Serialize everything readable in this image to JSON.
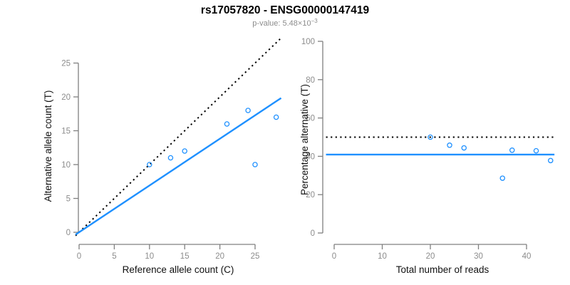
{
  "header": {
    "title": "rs17057820 - ENSG00000147419",
    "pvalue_prefix": "p-value: 5.48×10",
    "pvalue_exponent": "−3"
  },
  "colors": {
    "accent_blue": "#1E90FF",
    "line_black": "#000000",
    "axis_gray": "#808080",
    "tick_label_gray": "#8c8c8c",
    "subtitle_gray": "#8c8c8c",
    "label_black": "#111111"
  },
  "chart_data": [
    {
      "type": "scatter",
      "panel": "allele-counts",
      "xlabel": "Reference allele count (C)",
      "ylabel": "Alternative allele count (T)",
      "xticks": [
        0,
        5,
        10,
        15,
        20,
        25
      ],
      "yticks": [
        0,
        5,
        10,
        15,
        20,
        25
      ],
      "xlim": [
        -0.5,
        28.7
      ],
      "ylim": [
        -0.5,
        28.7
      ],
      "grid": false,
      "legend": "none",
      "points": [
        [
          10,
          10
        ],
        [
          13,
          11
        ],
        [
          15,
          12
        ],
        [
          21,
          16
        ],
        [
          24,
          18
        ],
        [
          25,
          10
        ],
        [
          28,
          17
        ]
      ],
      "lines": [
        {
          "kind": "abline",
          "slope": 1,
          "intercept": 0,
          "style": "dotted",
          "color": "black",
          "meaning": "expected 1:1 allele ratio"
        },
        {
          "kind": "abline",
          "slope": 0.691,
          "intercept": 0,
          "style": "solid",
          "color": "blue",
          "meaning": "observed allelic ratio fit"
        }
      ]
    },
    {
      "type": "scatter",
      "panel": "percentage-by-reads",
      "xlabel": "Total number of reads",
      "ylabel": "Percentage alternative (T)",
      "xticks": [
        0,
        10,
        20,
        30,
        40
      ],
      "yticks": [
        0,
        20,
        40,
        60,
        80,
        100
      ],
      "xlim": [
        -1.7,
        45.8
      ],
      "ylim": [
        -4,
        104
      ],
      "grid": false,
      "legend": "none",
      "points": [
        [
          20,
          50
        ],
        [
          24,
          45.8
        ],
        [
          27,
          44.4
        ],
        [
          35,
          28.6
        ],
        [
          37,
          43.2
        ],
        [
          42,
          42.9
        ],
        [
          45,
          37.8
        ]
      ],
      "lines": [
        {
          "kind": "hline",
          "y": 50,
          "style": "dotted",
          "color": "black",
          "meaning": "expected 50% alternative"
        },
        {
          "kind": "hline",
          "y": 40.9,
          "style": "solid",
          "color": "blue",
          "meaning": "observed mean percentage"
        }
      ]
    }
  ]
}
